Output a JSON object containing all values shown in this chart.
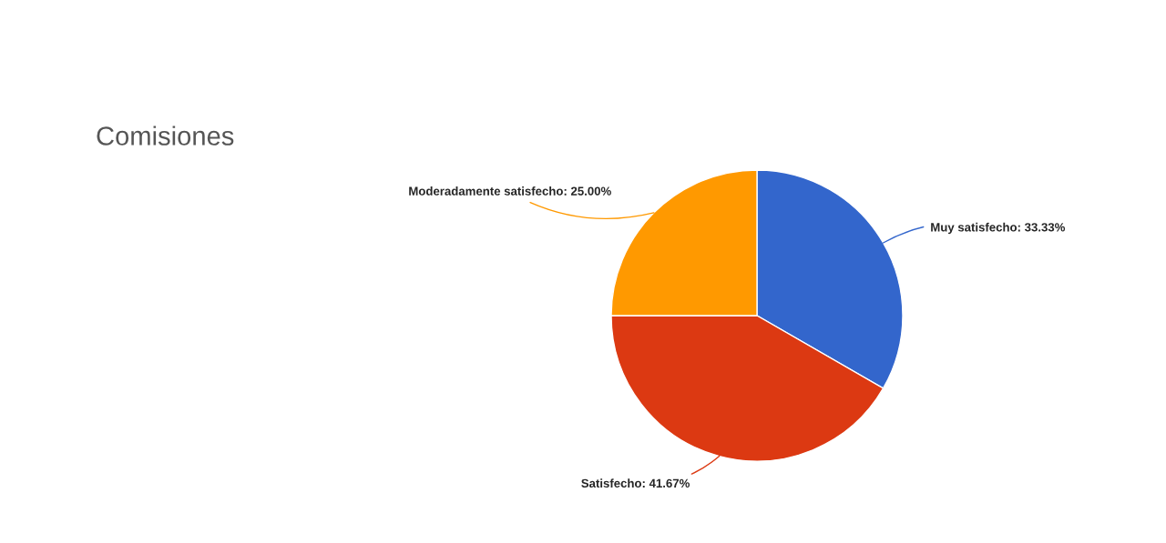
{
  "chart_data": {
    "type": "pie",
    "title": "Comisiones",
    "categories": [
      "Muy satisfecho",
      "Satisfecho",
      "Moderadamente satisfecho"
    ],
    "values": [
      33.33,
      41.67,
      25.0
    ],
    "value_labels": [
      "33.33%",
      "41.67%",
      "25.00%"
    ],
    "colors": [
      "#3366cc",
      "#dc3912",
      "#ff9900"
    ],
    "legend": false
  }
}
